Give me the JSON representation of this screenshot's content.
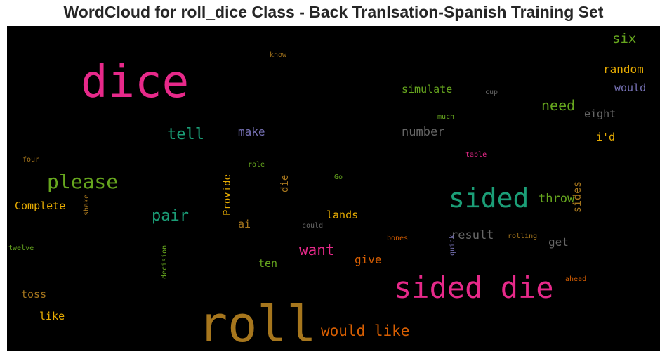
{
  "chart_data": {
    "type": "wordcloud",
    "title": "WordCloud for roll_dice Class - Back Tranlsation-Spanish Training Set",
    "background": "#000000",
    "words": [
      {
        "text": "dice",
        "weight": 64,
        "color": "#e7298a"
      },
      {
        "text": "roll",
        "weight": 70,
        "color": "#a6761d"
      },
      {
        "text": "sided die",
        "weight": 42,
        "color": "#e7298a"
      },
      {
        "text": "sided",
        "weight": 38,
        "color": "#1b9e77"
      },
      {
        "text": "please",
        "weight": 28,
        "color": "#66a61e"
      },
      {
        "text": "tell",
        "weight": 22,
        "color": "#1b9e77"
      },
      {
        "text": "pair",
        "weight": 22,
        "color": "#1b9e77"
      },
      {
        "text": "want",
        "weight": 21,
        "color": "#e7298a"
      },
      {
        "text": "would like",
        "weight": 21,
        "color": "#d95f02"
      },
      {
        "text": "need",
        "weight": 20,
        "color": "#66a61e"
      },
      {
        "text": "six",
        "weight": 19,
        "color": "#66a61e"
      },
      {
        "text": "number",
        "weight": 17,
        "color": "#666666"
      },
      {
        "text": "result",
        "weight": 17,
        "color": "#666666"
      },
      {
        "text": "throw",
        "weight": 17,
        "color": "#66a61e"
      },
      {
        "text": "random",
        "weight": 16,
        "color": "#e6ab02"
      },
      {
        "text": "make",
        "weight": 16,
        "color": "#7570b3"
      },
      {
        "text": "simulate",
        "weight": 15,
        "color": "#66a61e"
      },
      {
        "text": "would",
        "weight": 15,
        "color": "#7570b3"
      },
      {
        "text": "eight",
        "weight": 15,
        "color": "#666666"
      },
      {
        "text": "i'd",
        "weight": 15,
        "color": "#e6ab02"
      },
      {
        "text": "Complete",
        "weight": 15,
        "color": "#e6ab02"
      },
      {
        "text": "lands",
        "weight": 15,
        "color": "#e6ab02"
      },
      {
        "text": "give",
        "weight": 16,
        "color": "#d95f02"
      },
      {
        "text": "ten",
        "weight": 15,
        "color": "#66a61e"
      },
      {
        "text": "get",
        "weight": 16,
        "color": "#666666"
      },
      {
        "text": "sides",
        "weight": 15,
        "color": "#a6761d"
      },
      {
        "text": "ai",
        "weight": 15,
        "color": "#a6761d"
      },
      {
        "text": "toss",
        "weight": 15,
        "color": "#a6761d"
      },
      {
        "text": "like",
        "weight": 15,
        "color": "#e6ab02"
      },
      {
        "text": "Provide",
        "weight": 14,
        "color": "#e6ab02"
      },
      {
        "text": "die",
        "weight": 14,
        "color": "#a6761d"
      },
      {
        "text": "know",
        "weight": 10,
        "color": "#a6761d"
      },
      {
        "text": "cup",
        "weight": 10,
        "color": "#666666"
      },
      {
        "text": "much",
        "weight": 10,
        "color": "#66a61e"
      },
      {
        "text": "table",
        "weight": 10,
        "color": "#e7298a"
      },
      {
        "text": "four",
        "weight": 10,
        "color": "#a6761d"
      },
      {
        "text": "role",
        "weight": 10,
        "color": "#66a61e"
      },
      {
        "text": "Go",
        "weight": 10,
        "color": "#66a61e"
      },
      {
        "text": "could",
        "weight": 10,
        "color": "#666666"
      },
      {
        "text": "bones",
        "weight": 10,
        "color": "#d95f02"
      },
      {
        "text": "rolling",
        "weight": 10,
        "color": "#a6761d"
      },
      {
        "text": "twelve",
        "weight": 10,
        "color": "#66a61e"
      },
      {
        "text": "shake",
        "weight": 10,
        "color": "#a6761d"
      },
      {
        "text": "quick",
        "weight": 10,
        "color": "#7570b3"
      },
      {
        "text": "ahead",
        "weight": 10,
        "color": "#d95f02"
      },
      {
        "text": "decision",
        "weight": 10,
        "color": "#66a61e"
      }
    ]
  }
}
